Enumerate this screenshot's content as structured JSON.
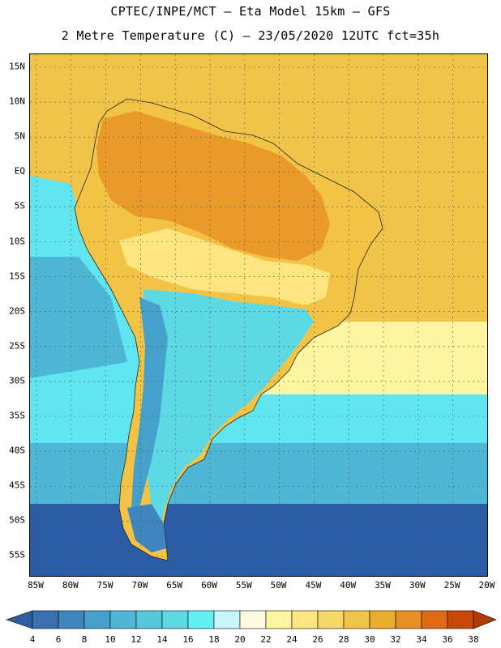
{
  "header": {
    "line1": "CPTEC/INPE/MCT –  Eta Model 15km – GFS",
    "line2": "2 Metre Temperature (C) – 23/05/2020 12UTC fct=35h"
  },
  "axes": {
    "lat_labels": [
      "15N",
      "10N",
      "5N",
      "EQ",
      "5S",
      "10S",
      "15S",
      "20S",
      "25S",
      "30S",
      "35S",
      "40S",
      "45S",
      "50S",
      "55S"
    ],
    "lon_labels": [
      "85W",
      "80W",
      "75W",
      "70W",
      "65W",
      "60W",
      "55W",
      "50W",
      "45W",
      "40W",
      "35W",
      "30W",
      "25W",
      "20W"
    ]
  },
  "colorbar": {
    "labels": [
      "4",
      "6",
      "8",
      "10",
      "12",
      "14",
      "16",
      "18",
      "20",
      "22",
      "24",
      "26",
      "28",
      "30",
      "32",
      "34",
      "36",
      "38"
    ],
    "colors": [
      "#3a6fb0",
      "#3f86c0",
      "#46a0cc",
      "#4fb6d6",
      "#55c8dc",
      "#5cd9e4",
      "#62f0f4",
      "#c8f4fc",
      "#fffae0",
      "#fff5a0",
      "#fde680",
      "#f6d868",
      "#f0c448",
      "#ecac30",
      "#e88e24",
      "#e06a12",
      "#c84808"
    ],
    "low_color": "#2d5f9f",
    "high_color": "#b03c04"
  },
  "map": {
    "ocean_colors": {
      "deep_south": "#2b5da6",
      "south": "#4fb7d6",
      "mid": "#5fe6f0",
      "subtropic": "#fff5a0",
      "tropic": "#f0c448"
    },
    "land_colors": {
      "hot": "#e99a28",
      "warm": "#f3c346",
      "mild": "#fde680",
      "cool": "#5cd9e4",
      "cold": "#46a0cc",
      "andes": "#3f86c0"
    }
  }
}
